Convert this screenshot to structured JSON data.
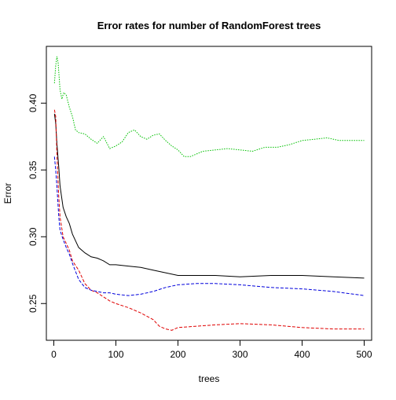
{
  "chart_data": {
    "type": "line",
    "title": "Error rates for number of RandomForest trees",
    "xlabel": "trees",
    "ylabel": "Error",
    "xlim": [
      -12,
      512
    ],
    "ylim": [
      0.2225,
      0.4425
    ],
    "grid": false,
    "x_ticks": [
      0,
      100,
      200,
      300,
      400,
      500
    ],
    "y_ticks": [
      0.25,
      0.3,
      0.35,
      0.4
    ],
    "x_tick_labels": [
      "0",
      "100",
      "200",
      "300",
      "400",
      "500"
    ],
    "y_tick_labels": [
      "0.25",
      "0.30",
      "0.35",
      "0.40"
    ],
    "series": [
      {
        "color": "#000000",
        "dash": "solid",
        "x": [
          1,
          3,
          5,
          8,
          10,
          15,
          20,
          25,
          30,
          40,
          50,
          60,
          70,
          80,
          90,
          100,
          120,
          140,
          160,
          180,
          200,
          230,
          260,
          300,
          350,
          400,
          450,
          500
        ],
        "y": [
          0.392,
          0.385,
          0.37,
          0.352,
          0.338,
          0.322,
          0.315,
          0.31,
          0.302,
          0.292,
          0.288,
          0.285,
          0.284,
          0.282,
          0.279,
          0.279,
          0.278,
          0.277,
          0.275,
          0.273,
          0.271,
          0.271,
          0.271,
          0.27,
          0.271,
          0.271,
          0.27,
          0.269
        ]
      },
      {
        "color": "#df0000",
        "dash": "dashed",
        "x": [
          1,
          3,
          5,
          8,
          10,
          15,
          20,
          25,
          30,
          40,
          50,
          60,
          70,
          80,
          90,
          100,
          120,
          140,
          160,
          170,
          180,
          190,
          200,
          230,
          260,
          300,
          350,
          400,
          450,
          500
        ],
        "y": [
          0.395,
          0.39,
          0.362,
          0.33,
          0.315,
          0.3,
          0.295,
          0.29,
          0.282,
          0.275,
          0.265,
          0.26,
          0.258,
          0.255,
          0.252,
          0.25,
          0.247,
          0.243,
          0.238,
          0.233,
          0.231,
          0.23,
          0.232,
          0.233,
          0.234,
          0.235,
          0.234,
          0.232,
          0.231,
          0.231
        ]
      },
      {
        "color": "#0000dc",
        "dash": "dashed",
        "x": [
          1,
          3,
          5,
          8,
          10,
          15,
          20,
          25,
          30,
          40,
          50,
          60,
          70,
          80,
          90,
          100,
          120,
          140,
          160,
          180,
          200,
          230,
          260,
          300,
          350,
          400,
          450,
          500
        ],
        "y": [
          0.36,
          0.35,
          0.338,
          0.315,
          0.305,
          0.298,
          0.292,
          0.287,
          0.28,
          0.268,
          0.262,
          0.26,
          0.259,
          0.258,
          0.258,
          0.257,
          0.256,
          0.257,
          0.259,
          0.262,
          0.264,
          0.265,
          0.265,
          0.264,
          0.262,
          0.261,
          0.259,
          0.256
        ]
      },
      {
        "color": "#00c000",
        "dash": "dotted",
        "x": [
          1,
          3,
          5,
          7,
          10,
          13,
          16,
          20,
          25,
          30,
          35,
          40,
          50,
          60,
          70,
          80,
          90,
          100,
          110,
          120,
          130,
          140,
          150,
          160,
          170,
          180,
          190,
          200,
          210,
          220,
          240,
          260,
          280,
          300,
          320,
          340,
          360,
          380,
          400,
          420,
          440,
          460,
          480,
          500
        ],
        "y": [
          0.415,
          0.428,
          0.435,
          0.43,
          0.41,
          0.403,
          0.408,
          0.406,
          0.397,
          0.39,
          0.38,
          0.378,
          0.377,
          0.373,
          0.37,
          0.375,
          0.366,
          0.368,
          0.371,
          0.378,
          0.38,
          0.375,
          0.373,
          0.376,
          0.377,
          0.372,
          0.368,
          0.365,
          0.36,
          0.36,
          0.364,
          0.365,
          0.366,
          0.365,
          0.364,
          0.367,
          0.367,
          0.369,
          0.372,
          0.373,
          0.374,
          0.372,
          0.372,
          0.372
        ]
      }
    ]
  }
}
